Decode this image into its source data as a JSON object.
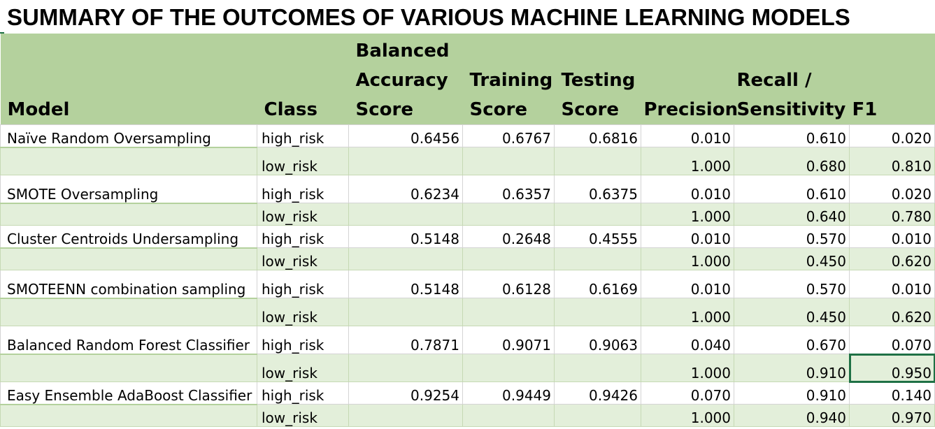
{
  "title": "SUMMARY OF THE OUTCOMES OF VARIOUS MACHINE LEARNING MODELS",
  "headers": {
    "model": "Model",
    "class": "Class",
    "balanced_accuracy": [
      "Balanced",
      "Accuracy",
      "Score"
    ],
    "training": [
      "Training",
      "Score"
    ],
    "testing": [
      "Testing",
      "Score"
    ],
    "precision": "Precision",
    "recall": [
      "Recall /",
      "Sensitivity"
    ],
    "f1": "F1"
  },
  "rows": [
    {
      "model": "Naïve Random Oversampling",
      "class": "high_risk",
      "bas": "0.6456",
      "train": "0.6767",
      "test": "0.6816",
      "precision": "0.010",
      "recall": "0.610",
      "f1": "0.020"
    },
    {
      "model": "",
      "class": "low_risk",
      "bas": "",
      "train": "",
      "test": "",
      "precision": "1.000",
      "recall": "0.680",
      "f1": "0.810"
    },
    {
      "model": "SMOTE Oversampling",
      "class": "high_risk",
      "bas": "0.6234",
      "train": "0.6357",
      "test": "0.6375",
      "precision": "0.010",
      "recall": "0.610",
      "f1": "0.020"
    },
    {
      "model": "",
      "class": "low_risk",
      "bas": "",
      "train": "",
      "test": "",
      "precision": "1.000",
      "recall": "0.640",
      "f1": "0.780"
    },
    {
      "model": "Cluster Centroids Undersampling",
      "class": "high_risk",
      "bas": "0.5148",
      "train": "0.2648",
      "test": "0.4555",
      "precision": "0.010",
      "recall": "0.570",
      "f1": "0.010"
    },
    {
      "model": "",
      "class": "low_risk",
      "bas": "",
      "train": "",
      "test": "",
      "precision": "1.000",
      "recall": "0.450",
      "f1": "0.620"
    },
    {
      "model": "SMOTEENN combination sampling",
      "class": "high_risk",
      "bas": "0.5148",
      "train": "0.6128",
      "test": "0.6169",
      "precision": "0.010",
      "recall": "0.570",
      "f1": "0.010"
    },
    {
      "model": "",
      "class": "low_risk",
      "bas": "",
      "train": "",
      "test": "",
      "precision": "1.000",
      "recall": "0.450",
      "f1": "0.620"
    },
    {
      "model": "Balanced Random Forest Classifier",
      "class": "high_risk",
      "bas": "0.7871",
      "train": "0.9071",
      "test": "0.9063",
      "precision": "0.040",
      "recall": "0.670",
      "f1": "0.070"
    },
    {
      "model": "",
      "class": "low_risk",
      "bas": "",
      "train": "",
      "test": "",
      "precision": "1.000",
      "recall": "0.910",
      "f1": "0.950"
    },
    {
      "model": "Easy Ensemble AdaBoost Classifier",
      "class": "high_risk",
      "bas": "0.9254",
      "train": "0.9449",
      "test": "0.9426",
      "precision": "0.070",
      "recall": "0.910",
      "f1": "0.140"
    },
    {
      "model": "",
      "class": "low_risk",
      "bas": "",
      "train": "",
      "test": "",
      "precision": "1.000",
      "recall": "0.940",
      "f1": "0.970"
    }
  ],
  "colors": {
    "header_bg": "#b4d19d",
    "band_bg": "#e3efda",
    "selection": "#1f7145"
  }
}
